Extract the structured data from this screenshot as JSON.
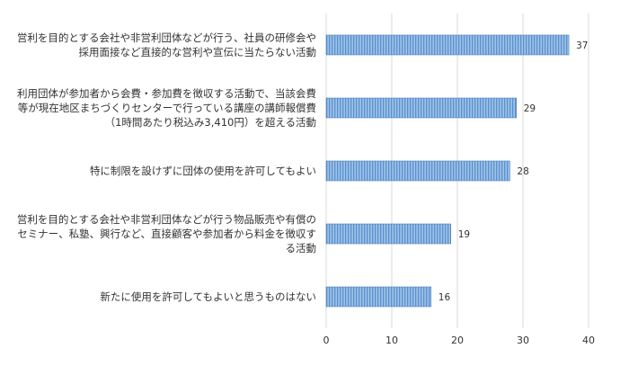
{
  "chart_data": {
    "type": "bar",
    "orientation": "horizontal",
    "categories": [
      [
        "営利を目的とする会社や非営利団体などが行う、社員の研修会や",
        "採用面接など直接的な営利や宣伝に当たらない活動"
      ],
      [
        "利用団体が参加者から会費・参加費を徴収する活動で、当該会費",
        "等が現在地区まちづくりセンターで行っている講座の講師報償費",
        "（1時間あたり税込み3,410円）を超える活動"
      ],
      [
        "特に制限を設けずに団体の使用を許可してもよい"
      ],
      [
        "営利を目的とする会社や非営利団体などが行う物品販売や有償の",
        "セミナー、私塾、興行など、直接顧客や参加者から料金を徴収す",
        "る活動"
      ],
      [
        "新たに使用を許可してもよいと思うものはない"
      ]
    ],
    "values": [
      37,
      29,
      28,
      19,
      16
    ],
    "data_labels": [
      "37",
      "29",
      "28",
      "19",
      "16"
    ],
    "xlim": [
      0,
      40
    ],
    "x_ticks": [
      "0",
      "10",
      "20",
      "30",
      "40"
    ],
    "grid": "vertical",
    "legend": "none",
    "colors": {
      "bar_fill": "#9dc3e6",
      "bar_stripe": "#5b8fd0",
      "grid": "#d9d9d9",
      "text": "#333333"
    }
  }
}
